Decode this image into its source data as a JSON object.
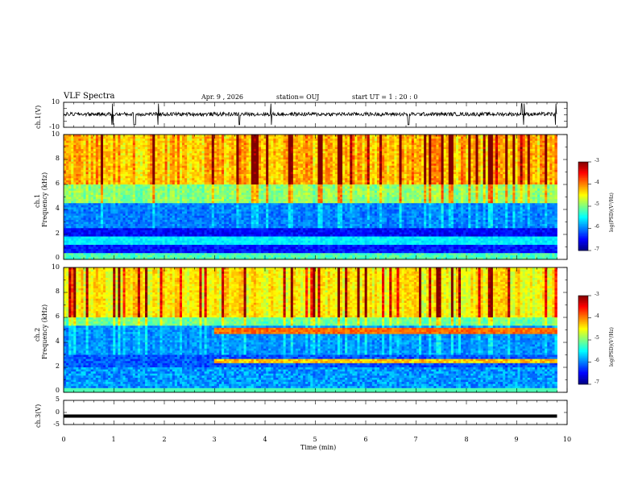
{
  "header": {
    "title": "VLF Spectra",
    "date": "Apr. 9  , 2026",
    "station": "station= OUJ",
    "start": "start  UT =   1 : 20 : 0"
  },
  "chart_data": [
    {
      "type": "line",
      "panel": "ch1-waveform",
      "ylabel": "ch.1(V)",
      "ylim": [
        -10,
        10
      ],
      "yticks": [
        "10",
        "-10"
      ],
      "description_values": {
        "baseline_V": 0.5,
        "noise_amplitude_V": 1.5,
        "spike_times_min": [
          0.97,
          1.4,
          1.42,
          1.88,
          3.49,
          4.12,
          6.85,
          9.1,
          9.14,
          9.77
        ]
      }
    },
    {
      "type": "heatmap",
      "panel": "ch1-spectrogram",
      "ylabel": "ch.1\nFrequency (kHz)",
      "ylabel_line1": "ch.1",
      "ylabel_line2": "Frequency (kHz)",
      "ylim": [
        0,
        10
      ],
      "yticks": [
        "10",
        "8",
        "6",
        "4",
        "2",
        "0"
      ],
      "xlim": [
        0,
        10
      ],
      "colorbar": {
        "label": "log(PSD)(V²/Hz)",
        "range": [
          -7,
          -3
        ],
        "ticks": [
          "-3",
          "-4",
          "-5",
          "-6",
          "-7"
        ]
      }
    },
    {
      "type": "heatmap",
      "panel": "ch2-spectrogram",
      "ylabel_line1": "ch.2",
      "ylabel_line2": "Frequency (kHz)",
      "ylim": [
        0,
        10
      ],
      "yticks": [
        "10",
        "8",
        "6",
        "4",
        "2",
        "0"
      ],
      "xlim": [
        0,
        10
      ],
      "colorbar": {
        "label": "log(PSD)(V²/Hz)",
        "range": [
          -7,
          -3
        ],
        "ticks": [
          "-3",
          "-4",
          "-5",
          "-6",
          "-7"
        ]
      }
    },
    {
      "type": "line",
      "panel": "ch3-waveform",
      "ylabel": "ch.3(V)",
      "ylim": [
        -5,
        5
      ],
      "yticks": [
        "5",
        "0",
        "-5"
      ],
      "x": [
        0,
        9.8
      ],
      "y": [
        -1.5,
        -1.5
      ]
    }
  ],
  "xaxis": {
    "label": "Time  (min)",
    "ticks": [
      "0",
      "1",
      "2",
      "3",
      "4",
      "5",
      "6",
      "7",
      "8",
      "9",
      "10"
    ],
    "xlim": [
      0,
      10
    ]
  }
}
